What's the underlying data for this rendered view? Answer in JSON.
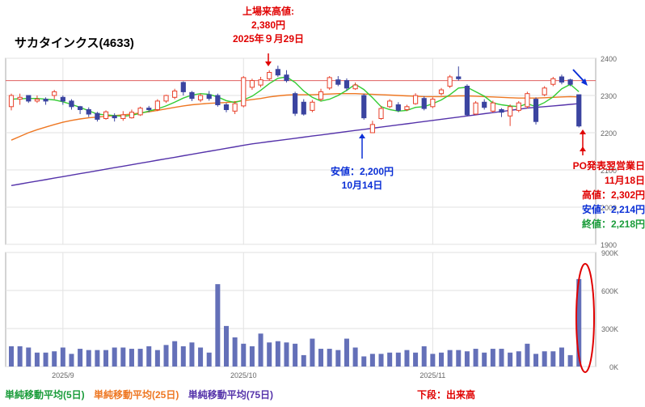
{
  "title": "サカタインクス(4633)",
  "annotations": {
    "high": {
      "line1": "上場来高値:",
      "line2": "2,380円",
      "line3": "2025年９月29日"
    },
    "low": {
      "line1": "安値：2,200円",
      "line2": "10月14日"
    },
    "earnings": {
      "line1": "PO発表翌営業日",
      "line2": "11月18日",
      "line3": "高値：2,302円",
      "line4": "安値：2,214円",
      "line5": "終値：2,218円"
    }
  },
  "legend": {
    "ma5": "単純移動平均(5日)",
    "ma25": "単純移動平均(25日)",
    "ma75": "単純移動平均(75日)",
    "lower": "下段：出来高"
  },
  "colors": {
    "up": "#e8402a",
    "down": "#3b44a0",
    "ma5": "#33cc33",
    "ma25": "#ee7722",
    "ma75": "#5533aa",
    "volume": "#6470b8",
    "highline": "#e06060",
    "annot_red": "#e00000",
    "annot_blue": "#0a2fd6",
    "annot_green": "#1a9c3a"
  },
  "chart_data": {
    "type": "candlestick",
    "x_tick_labels": [
      "2025/9",
      "2025/10",
      "2025/11"
    ],
    "x_tick_index": [
      6,
      27,
      49
    ],
    "price_axis": {
      "ylim": [
        1900,
        2400
      ],
      "ticks": [
        "2400",
        "2300",
        "2200",
        "2100",
        "2000",
        "1900"
      ]
    },
    "volume_axis": {
      "ylim": [
        0,
        900000
      ],
      "ticks": [
        "900K",
        "600K",
        "300K",
        "0K"
      ]
    },
    "high_line": 2340,
    "candles": [
      [
        2270,
        2300,
        2305,
        2260
      ],
      [
        2290,
        2295,
        2305,
        2275
      ],
      [
        2300,
        2285,
        2300,
        2280
      ],
      [
        2285,
        2290,
        2300,
        2280
      ],
      [
        2290,
        2285,
        2295,
        2275
      ],
      [
        2300,
        2310,
        2315,
        2290
      ],
      [
        2295,
        2285,
        2300,
        2275
      ],
      [
        2285,
        2270,
        2290,
        2262
      ],
      [
        2270,
        2262,
        2272,
        2250
      ],
      [
        2262,
        2250,
        2268,
        2242
      ],
      [
        2252,
        2236,
        2256,
        2230
      ],
      [
        2238,
        2256,
        2260,
        2235
      ],
      [
        2245,
        2240,
        2252,
        2230
      ],
      [
        2238,
        2248,
        2258,
        2232
      ],
      [
        2240,
        2255,
        2262,
        2238
      ],
      [
        2248,
        2266,
        2270,
        2245
      ],
      [
        2266,
        2262,
        2272,
        2255
      ],
      [
        2262,
        2285,
        2290,
        2258
      ],
      [
        2285,
        2300,
        2302,
        2280
      ],
      [
        2295,
        2312,
        2318,
        2290
      ],
      [
        2335,
        2310,
        2338,
        2300
      ],
      [
        2308,
        2292,
        2312,
        2285
      ],
      [
        2288,
        2300,
        2305,
        2282
      ],
      [
        2302,
        2292,
        2312,
        2286
      ],
      [
        2300,
        2275,
        2305,
        2270
      ],
      [
        2275,
        2262,
        2280,
        2255
      ],
      [
        2258,
        2278,
        2285,
        2250
      ],
      [
        2272,
        2348,
        2352,
        2268
      ],
      [
        2322,
        2340,
        2345,
        2315
      ],
      [
        2328,
        2342,
        2350,
        2322
      ],
      [
        2345,
        2362,
        2368,
        2340
      ],
      [
        2370,
        2355,
        2380,
        2350
      ],
      [
        2355,
        2340,
        2368,
        2335
      ],
      [
        2305,
        2252,
        2310,
        2245
      ],
      [
        2282,
        2250,
        2290,
        2246
      ],
      [
        2260,
        2282,
        2288,
        2255
      ],
      [
        2290,
        2310,
        2318,
        2285
      ],
      [
        2320,
        2348,
        2352,
        2315
      ],
      [
        2342,
        2330,
        2352,
        2325
      ],
      [
        2340,
        2320,
        2346,
        2312
      ],
      [
        2318,
        2328,
        2335,
        2315
      ],
      [
        2300,
        2240,
        2305,
        2235
      ],
      [
        2200,
        2222,
        2232,
        2200
      ],
      [
        2238,
        2265,
        2272,
        2235
      ],
      [
        2270,
        2285,
        2290,
        2266
      ],
      [
        2275,
        2260,
        2282,
        2255
      ],
      [
        2262,
        2270,
        2275,
        2258
      ],
      [
        2278,
        2300,
        2306,
        2275
      ],
      [
        2292,
        2265,
        2298,
        2260
      ],
      [
        2270,
        2290,
        2295,
        2266
      ],
      [
        2305,
        2315,
        2320,
        2300
      ],
      [
        2325,
        2350,
        2355,
        2320
      ],
      [
        2350,
        2345,
        2378,
        2340
      ],
      [
        2325,
        2248,
        2330,
        2244
      ],
      [
        2250,
        2280,
        2285,
        2248
      ],
      [
        2282,
        2268,
        2290,
        2262
      ],
      [
        2258,
        2280,
        2286,
        2254
      ],
      [
        2262,
        2255,
        2266,
        2242
      ],
      [
        2245,
        2270,
        2276,
        2218
      ],
      [
        2260,
        2280,
        2285,
        2255
      ],
      [
        2270,
        2305,
        2310,
        2265
      ],
      [
        2290,
        2230,
        2295,
        2222
      ],
      [
        2302,
        2320,
        2325,
        2298
      ],
      [
        2330,
        2345,
        2350,
        2325
      ],
      [
        2350,
        2336,
        2356,
        2330
      ],
      [
        2342,
        2330,
        2345,
        2325
      ],
      [
        2302,
        2218,
        2302,
        2214
      ]
    ],
    "ma5": [
      2290,
      2291,
      2292,
      2292,
      2290,
      2288,
      2283,
      2276,
      2268,
      2259,
      2250,
      2248,
      2246,
      2244,
      2247,
      2252,
      2258,
      2264,
      2272,
      2282,
      2293,
      2301,
      2305,
      2303,
      2296,
      2286,
      2281,
      2288,
      2298,
      2314,
      2332,
      2346,
      2350,
      2335,
      2312,
      2295,
      2285,
      2290,
      2300,
      2314,
      2330,
      2316,
      2294,
      2270,
      2262,
      2258,
      2260,
      2268,
      2270,
      2278,
      2288,
      2302,
      2320,
      2322,
      2310,
      2298,
      2280,
      2275,
      2272,
      2270,
      2278,
      2270,
      2281,
      2296,
      2318,
      2330,
      2310
    ],
    "ma25": [
      2180,
      2190,
      2200,
      2208,
      2215,
      2222,
      2228,
      2233,
      2237,
      2240,
      2242,
      2244,
      2246,
      2248,
      2250,
      2253,
      2256,
      2260,
      2264,
      2268,
      2272,
      2275,
      2277,
      2279,
      2280,
      2281,
      2283,
      2286,
      2289,
      2292,
      2296,
      2299,
      2301,
      2302,
      2302,
      2302,
      2303,
      2304,
      2305,
      2305,
      2305,
      2304,
      2303,
      2302,
      2301,
      2300,
      2299,
      2298,
      2297,
      2297,
      2297,
      2298,
      2299,
      2299,
      2298,
      2297,
      2296,
      2295,
      2294,
      2293,
      2293,
      2293,
      2294,
      2295,
      2296,
      2297,
      2296
    ],
    "ma75": [
      2058,
      2062,
      2066,
      2070,
      2074,
      2078,
      2082,
      2086,
      2090,
      2094,
      2098,
      2102,
      2106,
      2110,
      2114,
      2118,
      2122,
      2126,
      2130,
      2134,
      2138,
      2142,
      2146,
      2150,
      2154,
      2158,
      2162,
      2166,
      2170,
      2173,
      2176,
      2179,
      2182,
      2185,
      2188,
      2191,
      2194,
      2197,
      2200,
      2203,
      2206,
      2209,
      2212,
      2215,
      2218,
      2221,
      2224,
      2227,
      2230,
      2233,
      2236,
      2239,
      2242,
      2245,
      2248,
      2251,
      2254,
      2257,
      2260,
      2263,
      2266,
      2268,
      2270,
      2272,
      2274,
      2276,
      2278
    ],
    "volume": [
      160000,
      160000,
      150000,
      110000,
      110000,
      120000,
      150000,
      100000,
      140000,
      130000,
      130000,
      130000,
      150000,
      150000,
      140000,
      140000,
      160000,
      130000,
      170000,
      200000,
      160000,
      190000,
      150000,
      110000,
      650000,
      320000,
      230000,
      180000,
      160000,
      260000,
      190000,
      200000,
      190000,
      180000,
      90000,
      220000,
      140000,
      140000,
      130000,
      220000,
      150000,
      80000,
      100000,
      100000,
      110000,
      110000,
      130000,
      110000,
      160000,
      100000,
      110000,
      130000,
      130000,
      120000,
      140000,
      110000,
      140000,
      140000,
      110000,
      120000,
      180000,
      100000,
      120000,
      120000,
      150000,
      90000,
      690000
    ]
  }
}
